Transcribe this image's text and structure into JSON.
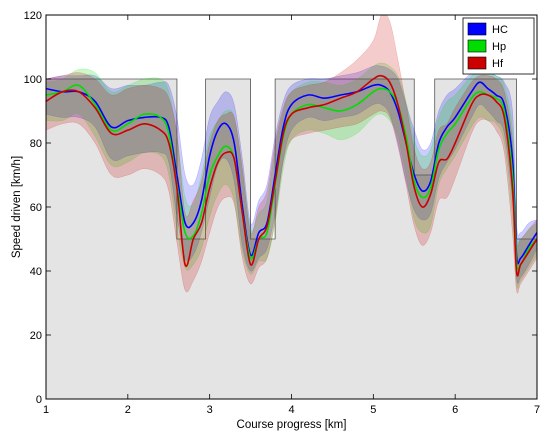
{
  "chart_data": {
    "type": "line",
    "xlabel": "Course progress [km]",
    "ylabel": "Speed driven [km/h]",
    "xlim": [
      1,
      7
    ],
    "ylim": [
      0,
      120
    ],
    "x_ticks": [
      1,
      2,
      3,
      4,
      5,
      6,
      7
    ],
    "y_ticks": [
      0,
      20,
      40,
      60,
      80,
      100,
      120
    ],
    "grid": false,
    "legend_position": "top-right",
    "legend": [
      "HC",
      "Hp",
      "Hf"
    ],
    "colors": {
      "HC": "#0000ff",
      "Hp": "#00dd00",
      "Hf": "#cc0000",
      "limit_fill": "#e4e4e4",
      "limit_line": "#555555"
    },
    "speed_limit": {
      "x": [
        1.0,
        2.6,
        2.6,
        2.95,
        2.95,
        3.5,
        3.5,
        3.8,
        3.8,
        5.5,
        5.5,
        5.75,
        5.75,
        6.75,
        6.75,
        7.0
      ],
      "y": [
        100,
        100,
        50,
        50,
        100,
        100,
        50,
        50,
        100,
        100,
        70,
        70,
        100,
        100,
        50,
        50
      ]
    },
    "x": [
      1.0,
      1.2,
      1.4,
      1.6,
      1.8,
      2.0,
      2.2,
      2.4,
      2.5,
      2.6,
      2.7,
      2.8,
      2.9,
      3.0,
      3.1,
      3.2,
      3.3,
      3.4,
      3.5,
      3.6,
      3.7,
      3.8,
      3.9,
      4.0,
      4.2,
      4.4,
      4.6,
      4.8,
      5.0,
      5.1,
      5.2,
      5.3,
      5.4,
      5.5,
      5.6,
      5.7,
      5.8,
      5.9,
      6.0,
      6.2,
      6.3,
      6.4,
      6.5,
      6.6,
      6.7,
      6.75,
      6.8,
      6.9,
      7.0
    ],
    "series": [
      {
        "name": "HC",
        "values": [
          97,
          96,
          96,
          93,
          85,
          87,
          88,
          88,
          85,
          70,
          55,
          55,
          62,
          76,
          84,
          86,
          80,
          60,
          45,
          52,
          55,
          70,
          85,
          92,
          95,
          94,
          95,
          96,
          98,
          98,
          96,
          90,
          80,
          70,
          65,
          68,
          80,
          85,
          88,
          96,
          99,
          97,
          95,
          92,
          75,
          45,
          44,
          48,
          52
        ],
        "upper": [
          100,
          101,
          101,
          101,
          97,
          98,
          98,
          99,
          98,
          88,
          70,
          67,
          75,
          88,
          93,
          96,
          92,
          75,
          55,
          62,
          67,
          82,
          93,
          98,
          100,
          100,
          101,
          102,
          104,
          104,
          103,
          100,
          92,
          84,
          78,
          80,
          90,
          95,
          97,
          102,
          103,
          102,
          101,
          99,
          90,
          55,
          52,
          55,
          56
        ],
        "lower": [
          89,
          88,
          88,
          85,
          75,
          76,
          77,
          77,
          74,
          57,
          44,
          45,
          52,
          63,
          73,
          75,
          68,
          48,
          40,
          44,
          47,
          58,
          75,
          84,
          88,
          87,
          88,
          89,
          92,
          92,
          89,
          80,
          68,
          59,
          56,
          58,
          69,
          74,
          78,
          88,
          92,
          90,
          87,
          83,
          62,
          38,
          38,
          42,
          47
        ]
      },
      {
        "name": "Hp",
        "values": [
          95,
          96,
          98,
          92,
          84,
          86,
          89,
          88,
          83,
          67,
          52,
          51,
          58,
          70,
          76,
          79,
          75,
          58,
          44,
          50,
          52,
          67,
          82,
          89,
          92,
          91,
          90,
          92,
          96,
          97,
          96,
          92,
          82,
          68,
          63,
          66,
          78,
          83,
          86,
          94,
          96,
          95,
          94,
          90,
          70,
          43,
          42,
          47,
          50
        ],
        "upper": [
          99,
          100,
          103,
          102,
          96,
          98,
          100,
          100,
          96,
          82,
          63,
          61,
          70,
          82,
          87,
          90,
          88,
          71,
          53,
          58,
          62,
          78,
          90,
          96,
          99,
          99,
          98,
          100,
          104,
          105,
          104,
          101,
          93,
          81,
          76,
          78,
          88,
          93,
          95,
          101,
          102,
          102,
          101,
          98,
          84,
          52,
          50,
          53,
          55
        ],
        "lower": [
          87,
          87,
          89,
          82,
          73,
          74,
          77,
          76,
          70,
          53,
          41,
          42,
          47,
          57,
          64,
          67,
          62,
          46,
          39,
          43,
          44,
          55,
          72,
          81,
          84,
          83,
          81,
          83,
          88,
          89,
          87,
          82,
          70,
          56,
          52,
          54,
          67,
          72,
          76,
          85,
          88,
          87,
          86,
          80,
          57,
          36,
          37,
          41,
          45
        ]
      },
      {
        "name": "Hf",
        "values": [
          93,
          96,
          96,
          91,
          83,
          84,
          86,
          84,
          80,
          66,
          42,
          50,
          55,
          66,
          74,
          77,
          75,
          58,
          42,
          50,
          54,
          68,
          83,
          89,
          91,
          92,
          94,
          96,
          100,
          101,
          99,
          92,
          80,
          66,
          60,
          64,
          74,
          75,
          80,
          92,
          95,
          95,
          93,
          88,
          66,
          40,
          42,
          46,
          50
        ],
        "upper": [
          100,
          101,
          102,
          100,
          95,
          97,
          98,
          97,
          94,
          83,
          58,
          62,
          68,
          80,
          87,
          89,
          88,
          72,
          52,
          60,
          65,
          80,
          91,
          96,
          98,
          99,
          102,
          106,
          112,
          120,
          118,
          106,
          92,
          78,
          72,
          74,
          84,
          86,
          91,
          99,
          101,
          101,
          100,
          96,
          80,
          50,
          50,
          53,
          56
        ],
        "lower": [
          84,
          86,
          86,
          80,
          70,
          70,
          72,
          70,
          65,
          49,
          34,
          37,
          43,
          52,
          60,
          63,
          61,
          44,
          36,
          41,
          44,
          56,
          74,
          81,
          83,
          84,
          85,
          86,
          89,
          90,
          88,
          79,
          67,
          54,
          48,
          52,
          62,
          63,
          69,
          83,
          87,
          87,
          84,
          77,
          52,
          34,
          36,
          40,
          44
        ]
      }
    ]
  }
}
